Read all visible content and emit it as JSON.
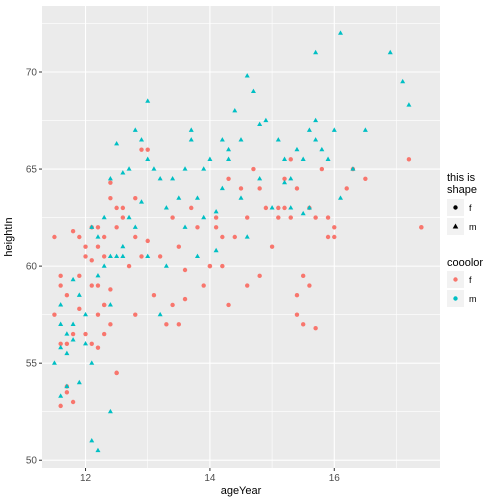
{
  "chart_data": {
    "type": "scatter",
    "title": "",
    "xlabel": "ageYear",
    "ylabel": "heightIn",
    "xlim": [
      11.3,
      17.7
    ],
    "ylim": [
      49.6,
      73.4
    ],
    "x_ticks": [
      12,
      14,
      16
    ],
    "y_ticks": [
      50,
      55,
      60,
      65,
      70
    ],
    "grid": true,
    "legend_position": "right",
    "colors": {
      "f": "#F8766D",
      "m": "#00BFC4",
      "panel": "#EBEBEB",
      "gridline": "#FFFFFF"
    },
    "legends": [
      {
        "title_lines": [
          "this is",
          "shape"
        ],
        "entries": [
          {
            "label": "f",
            "shape": "circle"
          },
          {
            "label": "m",
            "shape": "triangle"
          }
        ]
      },
      {
        "title_lines": [
          "cooolor"
        ],
        "entries": [
          {
            "label": "f",
            "color": "#F8766D"
          },
          {
            "label": "m",
            "color": "#00BFC4"
          }
        ]
      }
    ],
    "series": [
      {
        "name": "f",
        "marker": "circle",
        "color": "#F8766D",
        "x": [
          11.5,
          11.5,
          11.6,
          11.6,
          11.7,
          11.7,
          11.8,
          11.8,
          11.9,
          11.9,
          11.6,
          11.7,
          12.0,
          12.1,
          12.0,
          12.1,
          12.2,
          12.3,
          12.2,
          12.3,
          12.4,
          12.5,
          12.3,
          12.2,
          12.1,
          12.2,
          12.3,
          12.4,
          11.9,
          12.0,
          12.1,
          12.2,
          12.4,
          12.5,
          12.6,
          12.7,
          12.8,
          12.9,
          12.6,
          12.4,
          12.5,
          11.7,
          11.8,
          11.6,
          12.3,
          12.5,
          12.8,
          13.0,
          12.9,
          13.1,
          13.2,
          13.4,
          13.5,
          13.6,
          13.7,
          13.8,
          13.3,
          13.4,
          13.9,
          14.0,
          14.1,
          14.2,
          14.3,
          14.1,
          14.0,
          13.6,
          13.5,
          14.4,
          14.5,
          14.6,
          14.7,
          14.8,
          14.9,
          15.0,
          14.2,
          14.3,
          14.6,
          14.8,
          15.1,
          15.2,
          15.3,
          15.4,
          15.5,
          15.6,
          15.3,
          15.1,
          15.2,
          15.4,
          15.6,
          15.7,
          15.8,
          15.9,
          16.0,
          15.9,
          15.4,
          15.5,
          16.2,
          16.3,
          16.5,
          17.2,
          17.4,
          17.4,
          13.0,
          12.8,
          15.7,
          16.0
        ],
        "y": [
          61.5,
          57.5,
          59.0,
          56.0,
          53.8,
          53.5,
          61.8,
          56.5,
          61.5,
          57.8,
          59.5,
          58.5,
          60.5,
          59.0,
          56.5,
          56.0,
          55.8,
          58.0,
          62.0,
          61.5,
          63.5,
          63.0,
          60.5,
          59.0,
          60.3,
          57.5,
          58.0,
          57.0,
          59.5,
          61.0,
          62.0,
          61.0,
          64.3,
          62.0,
          63.0,
          60.0,
          61.5,
          66.0,
          62.5,
          58.8,
          54.5,
          56.0,
          53.0,
          52.8,
          56.5,
          54.5,
          57.5,
          61.3,
          60.5,
          58.5,
          60.5,
          62.5,
          61.0,
          59.8,
          63.0,
          62.0,
          57.0,
          58.0,
          59.0,
          60.0,
          62.5,
          61.5,
          64.5,
          62.0,
          60.0,
          58.3,
          57.0,
          61.5,
          64.0,
          62.5,
          65.0,
          64.0,
          63.0,
          61.0,
          60.0,
          58.0,
          59.0,
          59.5,
          62.5,
          63.0,
          62.5,
          58.5,
          59.5,
          59.0,
          65.5,
          63.0,
          64.5,
          64.0,
          63.0,
          62.5,
          65.0,
          61.5,
          62.0,
          62.5,
          57.5,
          57.0,
          64.0,
          65.0,
          64.5,
          65.5,
          62.0,
          62.0,
          66.0,
          63.5,
          56.8,
          61.5
        ]
      },
      {
        "name": "m",
        "marker": "triangle",
        "color": "#00BFC4",
        "x": [
          11.5,
          11.6,
          11.7,
          11.8,
          11.9,
          11.6,
          11.7,
          11.8,
          12.0,
          11.9,
          12.0,
          12.1,
          12.1,
          12.2,
          12.3,
          12.4,
          12.2,
          12.3,
          12.1,
          12.2,
          12.5,
          12.6,
          12.7,
          12.8,
          12.5,
          12.6,
          12.4,
          12.4,
          12.6,
          12.7,
          12.9,
          13.0,
          13.1,
          13.2,
          13.3,
          12.8,
          12.9,
          13.0,
          13.4,
          13.5,
          13.6,
          13.7,
          13.8,
          13.9,
          13.2,
          13.3,
          13.6,
          13.7,
          14.0,
          14.1,
          14.2,
          14.3,
          14.4,
          14.5,
          13.9,
          14.6,
          14.7,
          14.8,
          14.9,
          15.0,
          14.5,
          14.6,
          14.2,
          14.3,
          15.1,
          15.2,
          15.3,
          15.4,
          15.5,
          15.6,
          15.7,
          15.2,
          15.3,
          15.8,
          15.9,
          16.0,
          16.1,
          16.3,
          15.6,
          15.7,
          16.5,
          16.9,
          17.1,
          17.2,
          13.0,
          14.8,
          16.1,
          15.7,
          11.6,
          11.6,
          11.7,
          11.8,
          12.4,
          15.5,
          14.1,
          13.8
        ],
        "y": [
          55.0,
          57.0,
          55.5,
          57.0,
          58.5,
          58.0,
          56.5,
          59.3,
          56.0,
          54.0,
          57.5,
          55.0,
          51.0,
          59.5,
          60.0,
          58.0,
          61.5,
          62.5,
          62.0,
          50.5,
          60.5,
          61.0,
          62.5,
          62.0,
          66.3,
          64.8,
          64.5,
          52.5,
          60.5,
          65.0,
          63.3,
          60.5,
          65.0,
          64.5,
          63.0,
          67.0,
          66.5,
          68.5,
          64.5,
          63.5,
          62.0,
          66.5,
          63.5,
          62.5,
          57.5,
          60.0,
          65.0,
          67.0,
          65.5,
          62.8,
          64.0,
          66.0,
          68.0,
          66.5,
          65.0,
          69.8,
          69.0,
          67.3,
          67.5,
          63.0,
          63.5,
          61.5,
          66.5,
          65.5,
          66.5,
          65.5,
          64.5,
          66.0,
          65.5,
          67.0,
          67.5,
          64.3,
          63.0,
          66.0,
          65.5,
          67.0,
          63.5,
          65.0,
          63.0,
          71.0,
          67.0,
          71.0,
          69.5,
          68.3,
          65.5,
          64.5,
          72.0,
          66.5,
          55.8,
          53.3,
          53.8,
          56.2,
          60.5,
          62.7,
          60.8,
          60.5
        ]
      }
    ]
  }
}
